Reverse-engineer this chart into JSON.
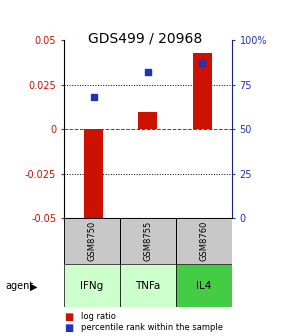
{
  "title": "GDS499 / 20968",
  "samples": [
    "GSM8750",
    "GSM8755",
    "GSM8760"
  ],
  "agents": [
    "IFNg",
    "TNFa",
    "IL4"
  ],
  "log_ratios": [
    -0.057,
    0.01,
    0.043
  ],
  "percentile_ranks": [
    0.68,
    0.82,
    0.875
  ],
  "ylim_left": [
    -0.05,
    0.05
  ],
  "ylim_right": [
    0,
    1.0
  ],
  "yticks_left": [
    -0.05,
    -0.025,
    0,
    0.025,
    0.05
  ],
  "ytick_labels_left": [
    "-0.05",
    "-0.025",
    "0",
    "0.025",
    "0.05"
  ],
  "yticks_right": [
    0,
    0.25,
    0.5,
    0.75,
    1.0
  ],
  "ytick_labels_right": [
    "0",
    "25",
    "50",
    "75",
    "100%"
  ],
  "hlines_dotted": [
    -0.025,
    0.025
  ],
  "hline_dashed": 0.0,
  "bar_color": "#cc1100",
  "marker_color": "#2233bb",
  "bar_width": 0.35,
  "sample_bg_color": "#c8c8c8",
  "agent_colors": [
    "#ccffcc",
    "#ccffcc",
    "#44cc44"
  ],
  "title_fontsize": 10,
  "axis_fontsize": 7,
  "tick_fontsize": 7,
  "label_fontsize": 7,
  "agent_row_label": "agent"
}
